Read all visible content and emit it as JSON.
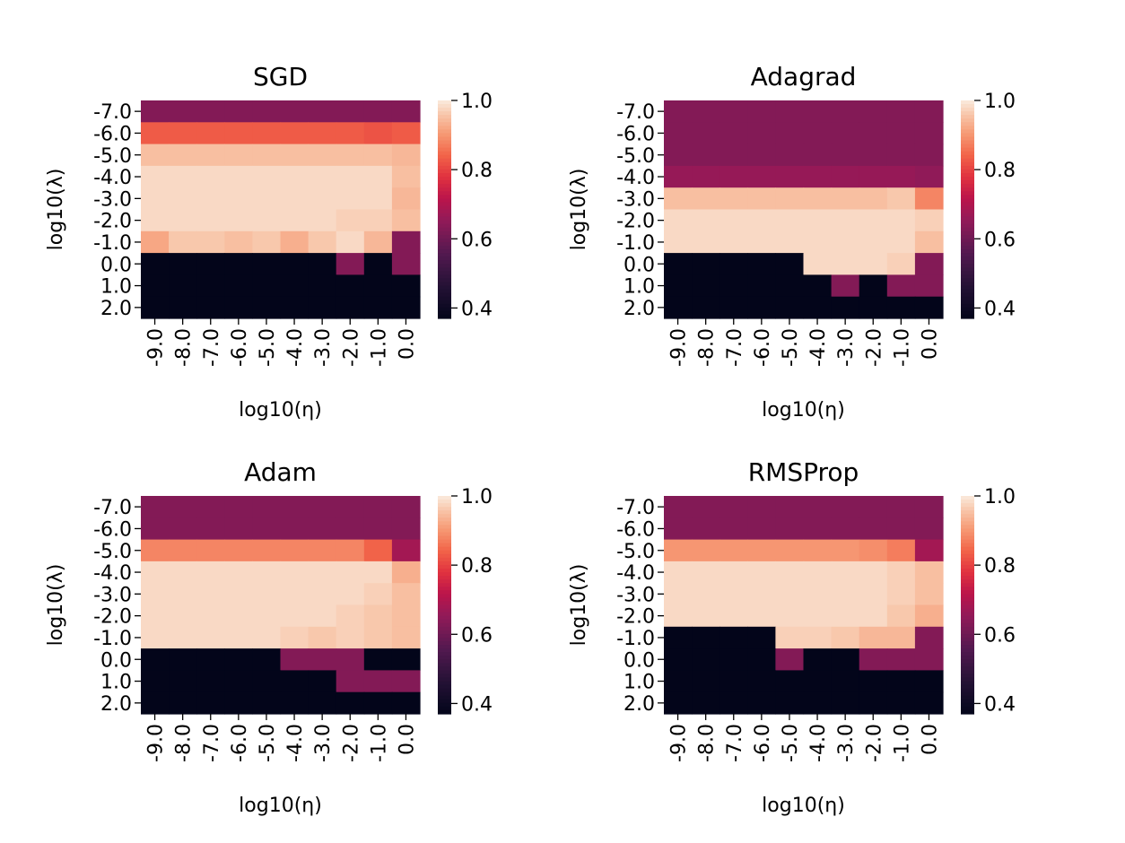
{
  "chart_data": [
    {
      "type": "heatmap",
      "title": "SGD",
      "xlabel": "log10(η)",
      "ylabel": "log10(λ)",
      "x_ticks": [
        "-9.0",
        "-8.0",
        "-7.0",
        "-6.0",
        "-5.0",
        "-4.0",
        "-3.0",
        "-2.0",
        "-1.0",
        "0.0"
      ],
      "y_ticks": [
        "-7.0",
        "-6.0",
        "-5.0",
        "-4.0",
        "-3.0",
        "-2.0",
        "-1.0",
        "0.0",
        "1.0",
        "2.0"
      ],
      "colorbar": {
        "range": [
          0.37,
          1.0
        ],
        "ticks": [
          "0.4",
          "0.6",
          "0.8",
          "1.0"
        ]
      },
      "values": [
        [
          0.63,
          0.63,
          0.63,
          0.63,
          0.63,
          0.63,
          0.63,
          0.63,
          0.63,
          0.63
        ],
        [
          0.83,
          0.83,
          0.83,
          0.83,
          0.83,
          0.83,
          0.83,
          0.83,
          0.82,
          0.83
        ],
        [
          0.95,
          0.95,
          0.95,
          0.95,
          0.95,
          0.95,
          0.95,
          0.95,
          0.95,
          0.94
        ],
        [
          0.98,
          0.98,
          0.98,
          0.98,
          0.98,
          0.98,
          0.98,
          0.98,
          0.98,
          0.95
        ],
        [
          0.98,
          0.98,
          0.98,
          0.98,
          0.98,
          0.98,
          0.98,
          0.98,
          0.98,
          0.94
        ],
        [
          0.98,
          0.98,
          0.98,
          0.98,
          0.98,
          0.98,
          0.98,
          0.97,
          0.97,
          0.95
        ],
        [
          0.92,
          0.96,
          0.96,
          0.95,
          0.96,
          0.93,
          0.96,
          0.98,
          0.94,
          0.63
        ],
        [
          0.37,
          0.37,
          0.37,
          0.37,
          0.37,
          0.37,
          0.37,
          0.63,
          0.37,
          0.63
        ],
        [
          0.37,
          0.37,
          0.37,
          0.37,
          0.37,
          0.37,
          0.37,
          0.37,
          0.37,
          0.37
        ],
        [
          0.37,
          0.37,
          0.37,
          0.37,
          0.37,
          0.37,
          0.37,
          0.37,
          0.37,
          0.37
        ]
      ]
    },
    {
      "type": "heatmap",
      "title": "Adagrad",
      "xlabel": "log10(η)",
      "ylabel": "log10(λ)",
      "x_ticks": [
        "-9.0",
        "-8.0",
        "-7.0",
        "-6.0",
        "-5.0",
        "-4.0",
        "-3.0",
        "-2.0",
        "-1.0",
        "0.0"
      ],
      "y_ticks": [
        "-7.0",
        "-6.0",
        "-5.0",
        "-4.0",
        "-3.0",
        "-2.0",
        "-1.0",
        "0.0",
        "1.0",
        "2.0"
      ],
      "colorbar": {
        "range": [
          0.37,
          1.0
        ],
        "ticks": [
          "0.4",
          "0.6",
          "0.8",
          "1.0"
        ]
      },
      "values": [
        [
          0.63,
          0.63,
          0.63,
          0.63,
          0.63,
          0.63,
          0.63,
          0.63,
          0.63,
          0.63
        ],
        [
          0.63,
          0.63,
          0.63,
          0.63,
          0.63,
          0.63,
          0.63,
          0.63,
          0.63,
          0.63
        ],
        [
          0.63,
          0.63,
          0.63,
          0.63,
          0.63,
          0.63,
          0.63,
          0.63,
          0.63,
          0.63
        ],
        [
          0.66,
          0.66,
          0.66,
          0.66,
          0.66,
          0.66,
          0.66,
          0.66,
          0.66,
          0.65
        ],
        [
          0.95,
          0.95,
          0.95,
          0.95,
          0.95,
          0.95,
          0.95,
          0.95,
          0.96,
          0.88
        ],
        [
          0.98,
          0.98,
          0.98,
          0.98,
          0.98,
          0.98,
          0.98,
          0.98,
          0.98,
          0.97
        ],
        [
          0.98,
          0.98,
          0.98,
          0.98,
          0.98,
          0.98,
          0.98,
          0.98,
          0.98,
          0.95
        ],
        [
          0.37,
          0.37,
          0.37,
          0.37,
          0.37,
          0.98,
          0.98,
          0.98,
          0.97,
          0.63
        ],
        [
          0.37,
          0.37,
          0.37,
          0.37,
          0.37,
          0.37,
          0.63,
          0.37,
          0.63,
          0.63
        ],
        [
          0.37,
          0.37,
          0.37,
          0.37,
          0.37,
          0.37,
          0.37,
          0.37,
          0.37,
          0.37
        ]
      ]
    },
    {
      "type": "heatmap",
      "title": "Adam",
      "xlabel": "log10(η)",
      "ylabel": "log10(λ)",
      "x_ticks": [
        "-9.0",
        "-8.0",
        "-7.0",
        "-6.0",
        "-5.0",
        "-4.0",
        "-3.0",
        "-2.0",
        "-1.0",
        "0.0"
      ],
      "y_ticks": [
        "-7.0",
        "-6.0",
        "-5.0",
        "-4.0",
        "-3.0",
        "-2.0",
        "-1.0",
        "0.0",
        "1.0",
        "2.0"
      ],
      "colorbar": {
        "range": [
          0.37,
          1.0
        ],
        "ticks": [
          "0.4",
          "0.6",
          "0.8",
          "1.0"
        ]
      },
      "values": [
        [
          0.63,
          0.63,
          0.63,
          0.63,
          0.63,
          0.63,
          0.63,
          0.63,
          0.63,
          0.63
        ],
        [
          0.63,
          0.63,
          0.63,
          0.63,
          0.63,
          0.63,
          0.63,
          0.63,
          0.63,
          0.63
        ],
        [
          0.88,
          0.88,
          0.88,
          0.88,
          0.88,
          0.88,
          0.88,
          0.88,
          0.84,
          0.68
        ],
        [
          0.98,
          0.98,
          0.98,
          0.98,
          0.98,
          0.98,
          0.98,
          0.98,
          0.98,
          0.93
        ],
        [
          0.98,
          0.98,
          0.98,
          0.98,
          0.98,
          0.98,
          0.98,
          0.98,
          0.97,
          0.95
        ],
        [
          0.98,
          0.98,
          0.98,
          0.98,
          0.98,
          0.98,
          0.98,
          0.97,
          0.96,
          0.95
        ],
        [
          0.98,
          0.98,
          0.98,
          0.98,
          0.98,
          0.97,
          0.96,
          0.97,
          0.96,
          0.95
        ],
        [
          0.37,
          0.37,
          0.37,
          0.37,
          0.37,
          0.63,
          0.63,
          0.63,
          0.37,
          0.37
        ],
        [
          0.37,
          0.37,
          0.37,
          0.37,
          0.37,
          0.37,
          0.37,
          0.63,
          0.63,
          0.63
        ],
        [
          0.37,
          0.37,
          0.37,
          0.37,
          0.37,
          0.37,
          0.37,
          0.37,
          0.37,
          0.37
        ]
      ]
    },
    {
      "type": "heatmap",
      "title": "RMSProp",
      "xlabel": "log10(η)",
      "ylabel": "log10(λ)",
      "x_ticks": [
        "-9.0",
        "-8.0",
        "-7.0",
        "-6.0",
        "-5.0",
        "-4.0",
        "-3.0",
        "-2.0",
        "-1.0",
        "0.0"
      ],
      "y_ticks": [
        "-7.0",
        "-6.0",
        "-5.0",
        "-4.0",
        "-3.0",
        "-2.0",
        "-1.0",
        "0.0",
        "1.0",
        "2.0"
      ],
      "colorbar": {
        "range": [
          0.37,
          1.0
        ],
        "ticks": [
          "0.4",
          "0.6",
          "0.8",
          "1.0"
        ]
      },
      "values": [
        [
          0.63,
          0.63,
          0.63,
          0.63,
          0.63,
          0.63,
          0.63,
          0.63,
          0.63,
          0.63
        ],
        [
          0.63,
          0.63,
          0.63,
          0.63,
          0.63,
          0.63,
          0.63,
          0.63,
          0.63,
          0.63
        ],
        [
          0.9,
          0.9,
          0.9,
          0.9,
          0.9,
          0.9,
          0.9,
          0.89,
          0.87,
          0.68
        ],
        [
          0.98,
          0.98,
          0.98,
          0.98,
          0.98,
          0.98,
          0.98,
          0.98,
          0.97,
          0.95
        ],
        [
          0.98,
          0.98,
          0.98,
          0.98,
          0.98,
          0.98,
          0.98,
          0.98,
          0.97,
          0.95
        ],
        [
          0.98,
          0.98,
          0.98,
          0.98,
          0.98,
          0.98,
          0.98,
          0.98,
          0.96,
          0.93
        ],
        [
          0.37,
          0.37,
          0.37,
          0.37,
          0.97,
          0.97,
          0.96,
          0.94,
          0.94,
          0.63
        ],
        [
          0.37,
          0.37,
          0.37,
          0.37,
          0.63,
          0.37,
          0.37,
          0.63,
          0.63,
          0.63
        ],
        [
          0.37,
          0.37,
          0.37,
          0.37,
          0.37,
          0.37,
          0.37,
          0.37,
          0.37,
          0.37
        ],
        [
          0.37,
          0.37,
          0.37,
          0.37,
          0.37,
          0.37,
          0.37,
          0.37,
          0.37,
          0.37
        ]
      ]
    }
  ]
}
